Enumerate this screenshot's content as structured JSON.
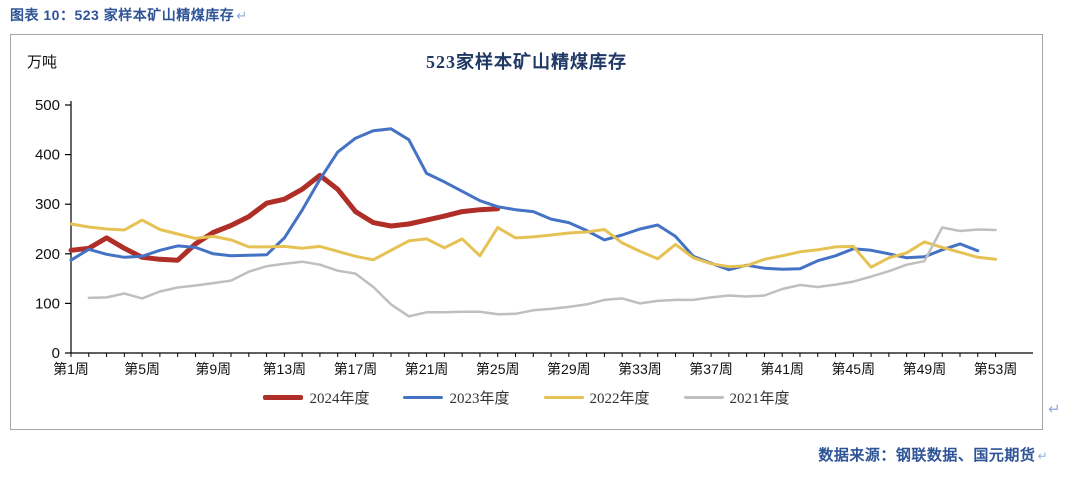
{
  "document": {
    "heading": "图表 10：523 家样本矿山精煤库存",
    "return_mark": "↵",
    "source_note": "数据来源：钢联数据、国元期货"
  },
  "colors": {
    "heading_blue": "#2F5496",
    "title_navy": "#1F3864",
    "axis_black": "#000000",
    "box_border_gray": "#A6A6A6",
    "return_mark_blue": "#8EAADB"
  },
  "chart_data": {
    "type": "line",
    "title": "523家样本矿山精煤库存",
    "ylabel": "万吨",
    "xlabel": "",
    "ylim": [
      0,
      500
    ],
    "yticks": [
      0,
      100,
      200,
      300,
      400,
      500
    ],
    "x_range_weeks": [
      1,
      53
    ],
    "xtick_weeks": [
      1,
      5,
      9,
      13,
      17,
      21,
      25,
      29,
      33,
      37,
      41,
      45,
      49,
      53
    ],
    "xtick_labels": [
      "第1周",
      "第5周",
      "第9周",
      "第13周",
      "第17周",
      "第21周",
      "第25周",
      "第29周",
      "第33周",
      "第37周",
      "第41周",
      "第45周",
      "第49周",
      "第53周"
    ],
    "grid": false,
    "legend_position": "bottom",
    "series": [
      {
        "name": "2024年度",
        "color": "#AF2E27",
        "width": 5,
        "start_week": 1,
        "values": [
          207,
          211,
          232,
          211,
          193,
          189,
          187,
          220,
          243,
          257,
          275,
          302,
          310,
          330,
          358,
          330,
          285,
          263,
          256,
          260,
          268,
          276,
          285,
          289,
          291
        ]
      },
      {
        "name": "2023年度",
        "color": "#4472C4",
        "width": 3,
        "start_week": 1,
        "values": [
          187,
          209,
          199,
          193,
          195,
          207,
          216,
          213,
          200,
          196,
          197,
          198,
          232,
          288,
          350,
          405,
          433,
          448,
          452,
          430,
          362,
          345,
          326,
          307,
          295,
          289,
          285,
          270,
          263,
          247,
          228,
          238,
          250,
          258,
          235,
          195,
          181,
          168,
          177,
          171,
          169,
          170,
          186,
          196,
          210,
          207,
          200,
          192,
          194,
          208,
          220,
          206
        ]
      },
      {
        "name": "2022年度",
        "color": "#E6C254",
        "width": 3,
        "start_week": 1,
        "values": [
          260,
          254,
          250,
          248,
          268,
          249,
          240,
          231,
          235,
          228,
          214,
          214,
          215,
          211,
          215,
          205,
          195,
          188,
          207,
          226,
          230,
          212,
          230,
          196,
          253,
          232,
          234,
          238,
          242,
          244,
          249,
          222,
          205,
          190,
          219,
          192,
          180,
          174,
          176,
          189,
          196,
          204,
          208,
          214,
          215,
          173,
          192,
          202,
          224,
          213,
          203,
          193,
          189
        ]
      },
      {
        "name": "2021年度",
        "color": "#BFBFBF",
        "width": 2.5,
        "start_week": 2,
        "values": [
          111,
          112,
          120,
          110,
          124,
          132,
          136,
          141,
          146,
          164,
          175,
          180,
          184,
          178,
          166,
          160,
          133,
          98,
          74,
          82,
          82,
          83,
          83,
          78,
          79,
          86,
          89,
          93,
          98,
          107,
          110,
          100,
          105,
          107,
          107,
          112,
          116,
          114,
          116,
          129,
          137,
          133,
          138,
          144,
          154,
          165,
          178,
          185,
          253,
          246,
          249,
          248
        ]
      }
    ]
  }
}
